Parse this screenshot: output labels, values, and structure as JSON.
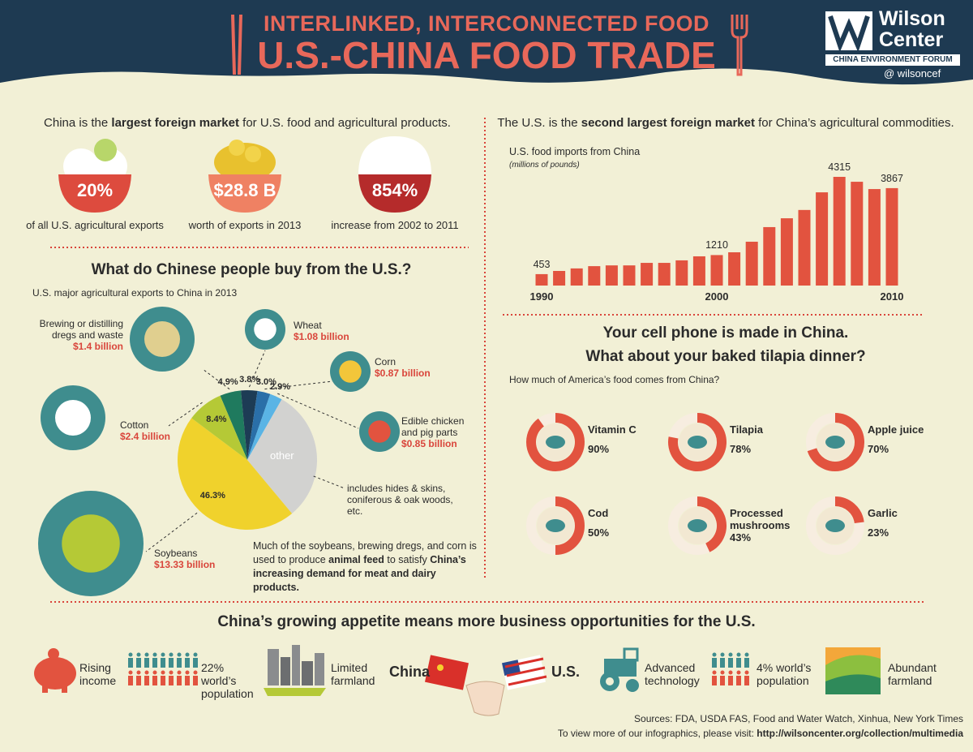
{
  "header": {
    "kicker": "INTERLINKED, INTERCONNECTED FOOD",
    "title": "U.S.-CHINA FOOD TRADE",
    "logo": "Wilson Center",
    "forum": "CHINA ENVIRONMENT FORUM",
    "handle": "@ wilsoncef"
  },
  "market": {
    "headline": [
      "China is the ",
      "largest foreign market",
      " for U.S. food and agricultural products."
    ],
    "stats": [
      {
        "figure": "20%",
        "caption": "of all U.S. agricultural exports"
      },
      {
        "figure": "$28.8 B",
        "caption": "worth of  exports in 2013"
      },
      {
        "figure": "854%",
        "caption": "increase from 2002 to 2011"
      }
    ]
  },
  "buy": {
    "heading": "What do Chinese people buy from the U.S.?",
    "subheading": "U.S. major agricultural exports to China in 2013",
    "other_note": "includes hides & skins, coniferous & oak woods, etc.",
    "note": [
      "Much of the soybeans, brewing dregs, and corn is used to produce ",
      "animal feed",
      " to satisfy ",
      "China’s increasing demand for meat and dairy products."
    ]
  },
  "imports": {
    "headline": [
      "The U.S. is the ",
      "second largest foreign market",
      " for China’s agricultural commodities."
    ]
  },
  "food": {
    "heading": [
      "Your cell phone is made in China.",
      "What about your baked tilapia dinner?"
    ],
    "subheading": "How much of America’s food comes from China?"
  },
  "opportunities": {
    "heading": "China’s growing appetite means more business opportunities for the U.S.",
    "items": [
      "Rising income",
      "22% world’s population",
      "Limited farmland",
      "China",
      "U.S.",
      "Advanced technology",
      "4% world’s population",
      "Abundant farmland"
    ]
  },
  "sources": {
    "line": "Sources: FDA, USDA FAS, Food and Water Watch, Xinhua, New York Times",
    "visit": "To view more of our infographics, please visit: ",
    "url": "http://wilsoncenter.org/collection/multimedia"
  },
  "chart_data": [
    {
      "type": "bar",
      "title": "U.S. food imports from China",
      "subtitle": "(millions of pounds)",
      "categories": [
        "1990",
        null,
        null,
        null,
        null,
        null,
        null,
        null,
        null,
        null,
        "2000",
        null,
        null,
        null,
        null,
        null,
        null,
        null,
        null,
        null,
        "2010"
      ],
      "values": [
        453,
        580,
        680,
        770,
        800,
        800,
        900,
        900,
        1000,
        1160,
        1210,
        1320,
        1740,
        2320,
        2670,
        3000,
        3700,
        4315,
        4120,
        3830,
        3867
      ],
      "value_labels": [
        "453",
        null,
        null,
        null,
        null,
        null,
        null,
        null,
        null,
        null,
        "1210",
        null,
        null,
        null,
        null,
        null,
        null,
        "4315",
        null,
        null,
        "3867"
      ],
      "color": "#e2533f"
    },
    {
      "type": "pie",
      "categories": [
        "Brewing or distilling dregs and waste",
        "Wheat",
        "Corn",
        "Edible chicken and pig parts",
        "other",
        "Soybeans",
        "Cotton"
      ],
      "values": [
        4.9,
        3.8,
        3.0,
        2.9,
        30.7,
        46.3,
        8.4
      ],
      "value_labels": [
        "4.9%",
        "3.8%",
        "3.0%",
        "2.9%",
        null,
        "46.3%",
        "8.4%"
      ],
      "amounts": [
        "$1.4 billion",
        "$1.08 billion",
        "$0.87 billion",
        "$0.85 billion",
        null,
        "$13.33 billion",
        "$2.4 billion"
      ],
      "colors": [
        "#1f7a5e",
        "#1d3c55",
        "#2a6fa8",
        "#5ab4e5",
        "#d2d2d0",
        "#f0d22c",
        "#b5c936"
      ]
    },
    {
      "type": "donut",
      "categories": [
        "Vitamin C",
        "Tilapia",
        "Apple juice",
        "Cod",
        "Processed mushrooms",
        "Garlic"
      ],
      "values": [
        90,
        78,
        70,
        50,
        43,
        23
      ],
      "value_labels": [
        "90%",
        "78%",
        "70%",
        "50%",
        "43%",
        "23%"
      ],
      "color": "#e2533f"
    }
  ]
}
